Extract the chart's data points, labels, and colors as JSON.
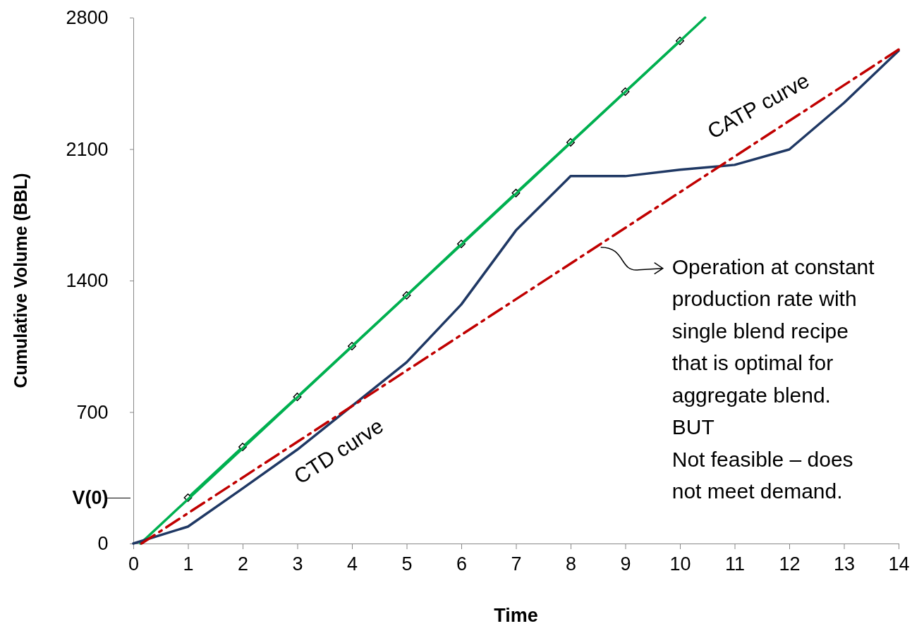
{
  "chart_data": {
    "type": "line",
    "xlabel": "Time",
    "ylabel": "Cumulative Volume (BBL)",
    "xlim": [
      0,
      14
    ],
    "ylim": [
      0,
      2800
    ],
    "xticks": [
      0,
      1,
      2,
      3,
      4,
      5,
      6,
      7,
      8,
      9,
      10,
      11,
      12,
      13,
      14
    ],
    "yticks": [
      0,
      {
        "value": 244,
        "label": "V(0)"
      },
      700,
      1400,
      2100,
      2800
    ],
    "grid": false,
    "series": [
      {
        "color": "#00b050",
        "marker": "diamond",
        "x": [
          1,
          2,
          3,
          4,
          5,
          6,
          7,
          8,
          9,
          10
        ],
        "values": [
          244,
          514,
          781,
          1051,
          1321,
          1595,
          1866,
          2136,
          2406,
          2676
        ]
      },
      {
        "color": "#00b050",
        "marker": "none",
        "x": [
          0.13,
          10.46
        ],
        "values": [
          0,
          2800
        ]
      },
      {
        "color": "#1f3864",
        "marker": "none",
        "x": [
          0,
          1,
          2,
          3,
          4,
          5,
          6,
          7,
          8,
          9,
          10,
          11,
          12,
          13,
          14
        ],
        "values": [
          0,
          90,
          293,
          500,
          732,
          965,
          1273,
          1667,
          1956,
          1956,
          1990,
          2016,
          2098,
          2346,
          2624
        ]
      },
      {
        "color": "#c00000",
        "marker": "none",
        "line_style": "dashdot",
        "x": [
          0.15,
          14
        ],
        "values": [
          0,
          2630
        ]
      }
    ],
    "annotations": [
      "CTD curve",
      "CATP curve",
      {
        "text": "Operation at constant\nproduction rate with\nsingle blend recipe\nthat is optimal for\naggregate blend.\nBUT\nNot feasible – does\nnot meet demand.",
        "x": 8.5,
        "y": 1585
      }
    ]
  }
}
